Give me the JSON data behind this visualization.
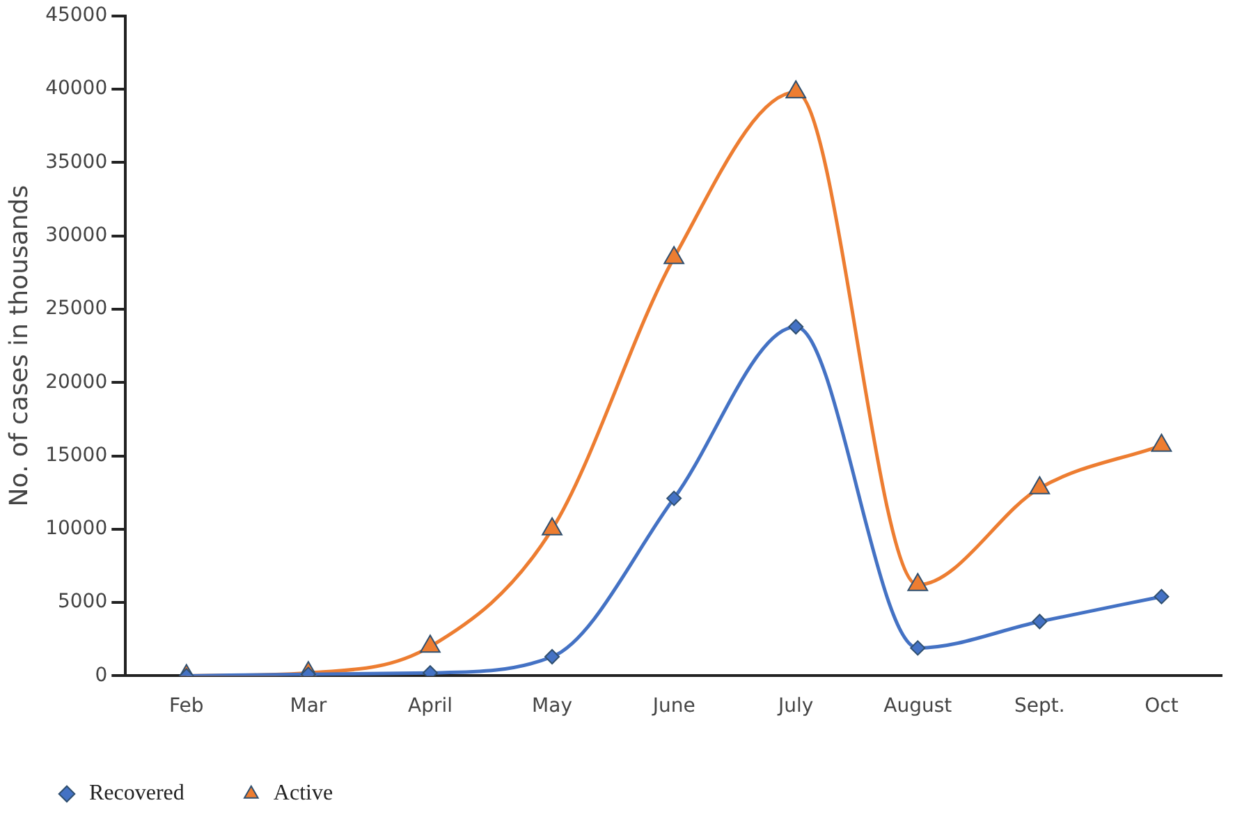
{
  "chart_data": {
    "type": "line",
    "ylabel": "No. of cases in thousands",
    "categories": [
      "Feb",
      "Mar",
      "April",
      "May",
      "June",
      "July",
      "August",
      "Sept.",
      "Oct"
    ],
    "series": [
      {
        "name": "Recovered",
        "color": "#4472c4",
        "marker": "diamond",
        "values": [
          0,
          100,
          200,
          1300,
          12100,
          23800,
          1900,
          3700,
          5400
        ]
      },
      {
        "name": "Active",
        "color": "#ed7d31",
        "marker": "triangle",
        "values": [
          0,
          200,
          2000,
          10000,
          28500,
          39800,
          6200,
          12800,
          15700
        ]
      }
    ],
    "ylim": [
      0,
      45000
    ],
    "yticks": [
      0,
      5000,
      10000,
      15000,
      20000,
      25000,
      30000,
      35000,
      40000,
      45000
    ],
    "grid": false,
    "legend": "bottom left",
    "line_style": "solid"
  }
}
